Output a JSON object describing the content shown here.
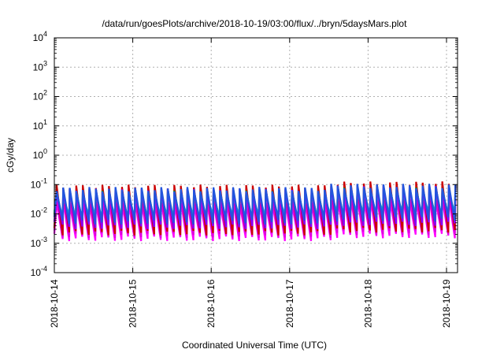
{
  "chart_data": {
    "type": "line",
    "title": "/data/run/goesPlots/archive/2018-10-19/03:00/flux/../bryn/5daysMars.plot",
    "xlabel": "Coordinated Universal Time (UTC)",
    "ylabel": "cGy/day",
    "yscale": "log",
    "ylim": [
      0.0001,
      10000
    ],
    "xlim": [
      "2018-10-14",
      "2018-10-19 03:00"
    ],
    "grid": true,
    "legend": "none",
    "y_ticks": [
      {
        "base": "10",
        "exp": "4"
      },
      {
        "base": "10",
        "exp": "3"
      },
      {
        "base": "10",
        "exp": "2"
      },
      {
        "base": "10",
        "exp": "1"
      },
      {
        "base": "10",
        "exp": "0"
      },
      {
        "base": "10",
        "exp": "-1"
      },
      {
        "base": "10",
        "exp": "-2"
      },
      {
        "base": "10",
        "exp": "-3"
      },
      {
        "base": "10",
        "exp": "-4"
      }
    ],
    "x_ticks": [
      "2018-10-14",
      "2018-10-15",
      "2018-10-16",
      "2018-10-17",
      "2018-10-18",
      "2018-10-19"
    ],
    "pattern": {
      "period_hours": 2,
      "segments": [
        {
          "start_day": 0,
          "end_day": 3.45,
          "peak": 0.07,
          "trough": 0.004
        },
        {
          "start_day": 3.45,
          "end_day": 5.125,
          "peak": 0.09,
          "trough": 0.005
        }
      ]
    },
    "series": [
      {
        "color": "#ff00ff",
        "values": {
          "peak_factor": 0.35,
          "trough_factor": 0.35
        }
      },
      {
        "color": "#dd00dd",
        "values": {
          "peak_factor": 0.45,
          "trough_factor": 0.45
        }
      },
      {
        "color": "#cc0000",
        "values": {
          "peak_factor": 1.2,
          "trough_factor": 0.55
        }
      },
      {
        "color": "#00aa00",
        "values": {
          "peak_factor": 0.75,
          "trough_factor": 1.6
        }
      },
      {
        "color": "#00cccc",
        "values": {
          "peak_factor": 0.6,
          "trough_factor": 2.0
        }
      },
      {
        "color": "#8800ff",
        "values": {
          "peak_factor": 0.9,
          "trough_factor": 0.9
        }
      },
      {
        "color": "#2255dd",
        "values": {
          "peak_factor": 1.0,
          "trough_factor": 1.3
        }
      }
    ]
  }
}
